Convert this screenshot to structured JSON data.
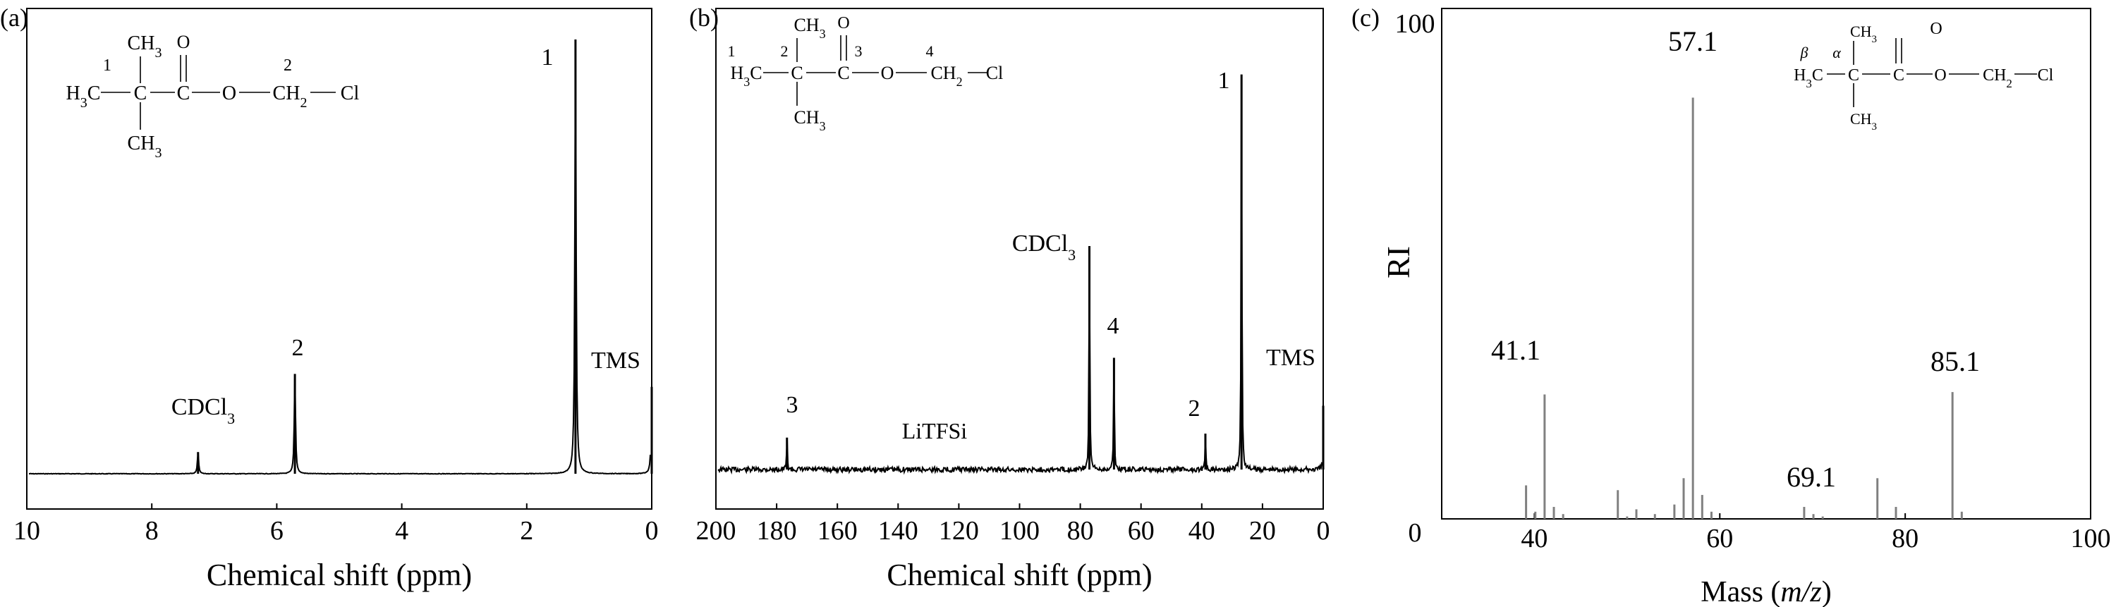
{
  "colors": {
    "spectrum": "#000000",
    "ms_bars": "#808080",
    "axis": "#000000",
    "background": "#ffffff"
  },
  "chart_data": [
    {
      "panel_label": "(a)",
      "type": "line",
      "xlabel": "Chemical shift (ppm)",
      "ylabel": "",
      "xlim": [
        10,
        0
      ],
      "x_reversed": true,
      "xticks": [
        10,
        8,
        6,
        4,
        2,
        0
      ],
      "yticks": [],
      "grid": false,
      "structure": {
        "label_lines": [
          {
            "spans": [
              {
                "t": "CH"
              },
              {
                "t": "3",
                "sub": true
              }
            ]
          },
          {
            "spans": [
              {
                "t": "O"
              }
            ]
          },
          {
            "spans": [
              {
                "t": "1"
              }
            ]
          },
          {
            "spans": [
              {
                "t": "2"
              }
            ]
          },
          {
            "spans": [
              {
                "t": "H"
              },
              {
                "t": "3",
                "sub": true
              },
              {
                "t": "C"
              }
            ]
          },
          {
            "spans": [
              {
                "t": "C"
              }
            ]
          },
          {
            "spans": [
              {
                "t": "C"
              }
            ]
          },
          {
            "spans": [
              {
                "t": "O"
              }
            ]
          },
          {
            "spans": [
              {
                "t": "CH"
              },
              {
                "t": "2",
                "sub": true
              }
            ]
          },
          {
            "spans": [
              {
                "t": "Cl"
              }
            ]
          },
          {
            "spans": [
              {
                "t": "CH"
              },
              {
                "t": "3",
                "sub": true
              }
            ]
          }
        ]
      },
      "peaks": [
        {
          "x": 7.26,
          "height": 0.05,
          "label": "CDCl",
          "sub": "3"
        },
        {
          "x": 5.71,
          "height": 0.23,
          "label": "2"
        },
        {
          "x": 1.22,
          "height": 1.0,
          "label": "1"
        },
        {
          "x": 0.0,
          "height": 0.2,
          "label": "TMS"
        }
      ]
    },
    {
      "panel_label": "(b)",
      "type": "line",
      "xlabel": "Chemical shift (ppm)",
      "ylabel": "",
      "xlim": [
        200,
        0
      ],
      "x_reversed": true,
      "xticks": [
        200,
        180,
        160,
        140,
        120,
        100,
        80,
        60,
        40,
        20,
        0
      ],
      "yticks": [],
      "grid": false,
      "structure": {
        "label_lines": [
          {
            "spans": [
              {
                "t": "CH"
              },
              {
                "t": "3",
                "sub": true
              }
            ]
          },
          {
            "spans": [
              {
                "t": "O"
              }
            ]
          },
          {
            "spans": [
              {
                "t": "1"
              }
            ]
          },
          {
            "spans": [
              {
                "t": "2"
              }
            ]
          },
          {
            "spans": [
              {
                "t": "3"
              }
            ]
          },
          {
            "spans": [
              {
                "t": "4"
              }
            ]
          },
          {
            "spans": [
              {
                "t": "H"
              },
              {
                "t": "3",
                "sub": true
              },
              {
                "t": "C"
              }
            ]
          },
          {
            "spans": [
              {
                "t": "C"
              }
            ]
          },
          {
            "spans": [
              {
                "t": "C"
              }
            ]
          },
          {
            "spans": [
              {
                "t": "O"
              }
            ]
          },
          {
            "spans": [
              {
                "t": "CH"
              },
              {
                "t": "2",
                "sub": true
              }
            ]
          },
          {
            "spans": [
              {
                "t": "Cl"
              }
            ]
          },
          {
            "spans": [
              {
                "t": "CH"
              },
              {
                "t": "3",
                "sub": true
              }
            ]
          }
        ]
      },
      "annotations": [
        {
          "x": 128,
          "label": "LiTFSi"
        }
      ],
      "peaks": [
        {
          "x": 176.6,
          "height": 0.08,
          "label": "3"
        },
        {
          "x": 77.0,
          "height": 0.56,
          "label": "CDCl",
          "sub": "3"
        },
        {
          "x": 68.9,
          "height": 0.28,
          "label": "4"
        },
        {
          "x": 38.8,
          "height": 0.09,
          "label": "2"
        },
        {
          "x": 26.9,
          "height": 0.99,
          "label": "1"
        },
        {
          "x": 0.0,
          "height": 0.16,
          "label": "TMS"
        }
      ]
    },
    {
      "panel_label": "(c)",
      "type": "bar",
      "xlabel_parts": [
        {
          "t": "Mass ("
        },
        {
          "t": "m/z",
          "italic": true
        },
        {
          "t": ")"
        }
      ],
      "ylabel": "RI",
      "xlim": [
        30,
        100
      ],
      "ylim": [
        0,
        100
      ],
      "xticks": [
        40,
        60,
        80,
        100
      ],
      "yticks": [
        0,
        100
      ],
      "grid": false,
      "structure": {
        "label_lines": [
          {
            "spans": [
              {
                "t": "CH"
              },
              {
                "t": "3",
                "sub": true
              }
            ]
          },
          {
            "spans": [
              {
                "t": "O"
              }
            ]
          },
          {
            "spans": [
              {
                "t": "β",
                "italic": true
              }
            ]
          },
          {
            "spans": [
              {
                "t": "α",
                "italic": true
              }
            ]
          },
          {
            "spans": [
              {
                "t": "H"
              },
              {
                "t": "3",
                "sub": true
              },
              {
                "t": "C"
              }
            ]
          },
          {
            "spans": [
              {
                "t": "C"
              }
            ]
          },
          {
            "spans": [
              {
                "t": "C"
              }
            ]
          },
          {
            "spans": [
              {
                "t": "O"
              }
            ]
          },
          {
            "spans": [
              {
                "t": "CH"
              },
              {
                "t": "2",
                "sub": true
              }
            ]
          },
          {
            "spans": [
              {
                "t": "Cl"
              }
            ]
          },
          {
            "spans": [
              {
                "t": "CH"
              },
              {
                "t": "3",
                "sub": true
              }
            ]
          }
        ]
      },
      "peaks": [
        {
          "x": 39.1,
          "y": 7
        },
        {
          "x": 40.1,
          "y": 1.5
        },
        {
          "x": 41.1,
          "y": 26,
          "label": "41.1"
        },
        {
          "x": 42.1,
          "y": 2.5
        },
        {
          "x": 43.1,
          "y": 1
        },
        {
          "x": 49.0,
          "y": 6
        },
        {
          "x": 50.0,
          "y": 0.5
        },
        {
          "x": 51.0,
          "y": 2
        },
        {
          "x": 53.0,
          "y": 1
        },
        {
          "x": 55.1,
          "y": 3
        },
        {
          "x": 56.1,
          "y": 8.5
        },
        {
          "x": 57.1,
          "y": 88,
          "label": "57.1"
        },
        {
          "x": 58.1,
          "y": 5
        },
        {
          "x": 59.1,
          "y": 1.5
        },
        {
          "x": 69.1,
          "y": 2.5,
          "label": "69.1"
        },
        {
          "x": 70.1,
          "y": 1
        },
        {
          "x": 71.1,
          "y": 0.5
        },
        {
          "x": 77.0,
          "y": 8.5
        },
        {
          "x": 79.0,
          "y": 2.5
        },
        {
          "x": 85.1,
          "y": 26.5,
          "label": "85.1"
        },
        {
          "x": 86.1,
          "y": 1.5
        }
      ]
    }
  ]
}
